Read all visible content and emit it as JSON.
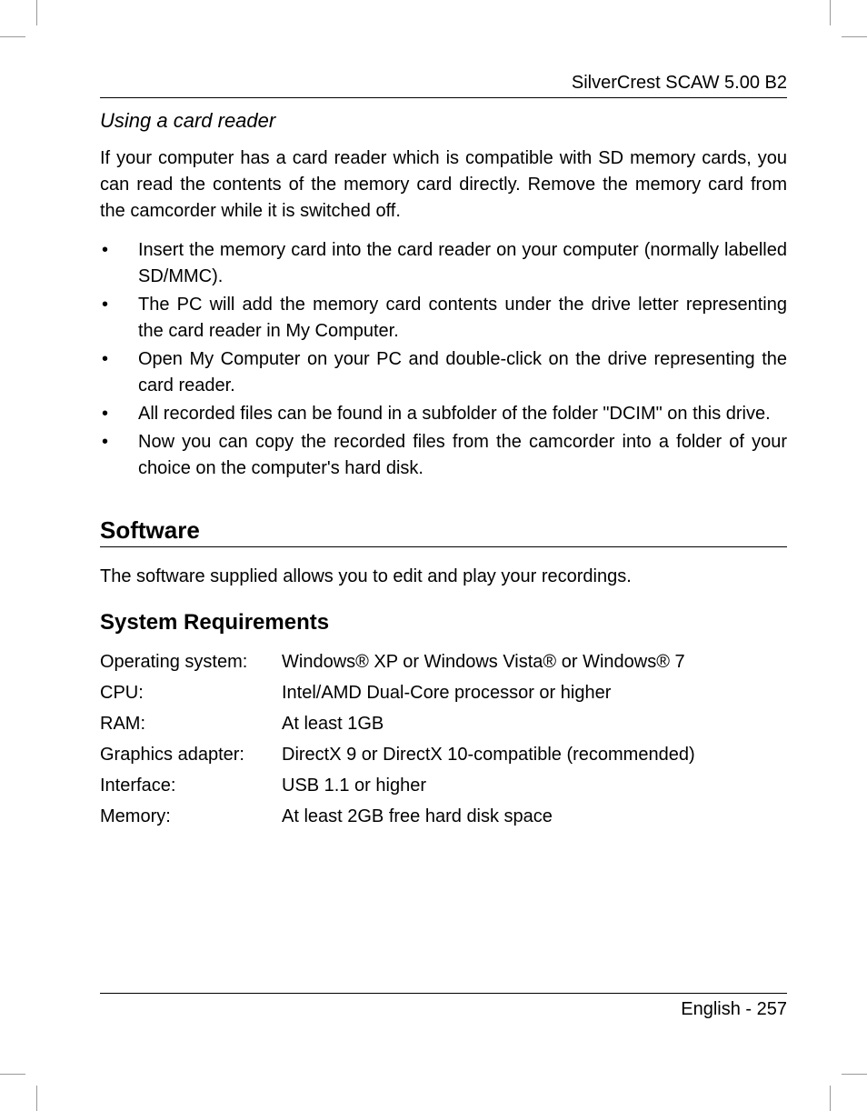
{
  "header": {
    "product": "SilverCrest SCAW 5.00 B2"
  },
  "section1": {
    "title": "Using a card reader",
    "intro": "If your computer has a card reader which is compatible with SD memory cards, you can read the contents of the memory card directly. Remove the memory card from the camcorder while it is switched off.",
    "bullets": [
      "Insert the memory card into the card reader on your computer (normally labelled SD/MMC).",
      "The PC will add the memory card contents under the drive letter representing the card reader in My Computer.",
      "Open My Computer on your PC and double-click on the drive representing the card reader.",
      "All recorded files can be found in a subfolder of the folder \"DCIM\" on this drive.",
      "Now you can copy the recorded files from the camcorder into a folder of your choice on the computer's hard disk."
    ]
  },
  "software": {
    "heading": "Software",
    "intro": "The software supplied allows you to edit and play your recordings.",
    "req_heading": "System Requirements",
    "rows": [
      {
        "label": "Operating system:",
        "value": "Windows® XP or Windows Vista® or Windows® 7"
      },
      {
        "label": "CPU:",
        "value": "Intel/AMD Dual-Core processor or higher"
      },
      {
        "label": "RAM:",
        "value": "At least 1GB"
      },
      {
        "label": "Graphics adapter:",
        "value": "DirectX 9 or DirectX 10-compatible (recommended)"
      },
      {
        "label": "Interface:",
        "value": "USB 1.1 or higher"
      },
      {
        "label": "Memory:",
        "value": "At least 2GB free hard disk space"
      }
    ]
  },
  "footer": {
    "text": "English - 257"
  }
}
